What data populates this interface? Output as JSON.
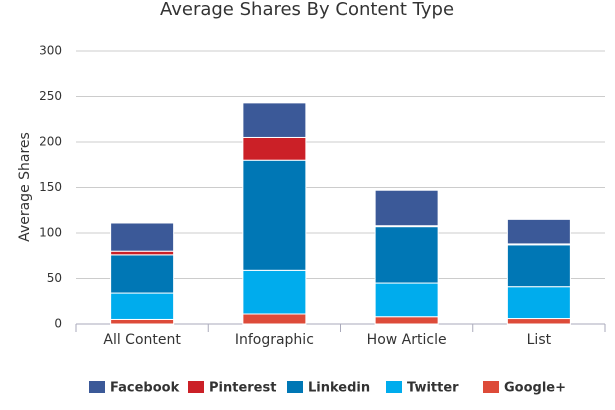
{
  "chart_data": {
    "type": "stacked-bar",
    "title": "Average Shares By Content Type",
    "y_label": "Average Shares",
    "categories": [
      "All Content",
      "Infographic",
      "How Article",
      "List"
    ],
    "series": [
      {
        "name": "Facebook",
        "color": "#3b5998",
        "values": [
          31,
          38,
          39,
          27
        ]
      },
      {
        "name": "Pinterest",
        "color": "#cb2027",
        "values": [
          4,
          25,
          1,
          1
        ]
      },
      {
        "name": "Linkedin",
        "color": "#0077b5",
        "values": [
          42,
          121,
          62,
          46
        ]
      },
      {
        "name": "Twitter",
        "color": "#00aced",
        "values": [
          29,
          48,
          37,
          35
        ]
      },
      {
        "name": "Google+",
        "color": "#dd4b39",
        "values": [
          5,
          11,
          8,
          6
        ]
      }
    ],
    "ylim": [
      0,
      300
    ],
    "yticks": [
      0,
      50,
      100,
      150,
      200,
      250,
      300
    ],
    "grid": true,
    "legend": "bottom"
  }
}
